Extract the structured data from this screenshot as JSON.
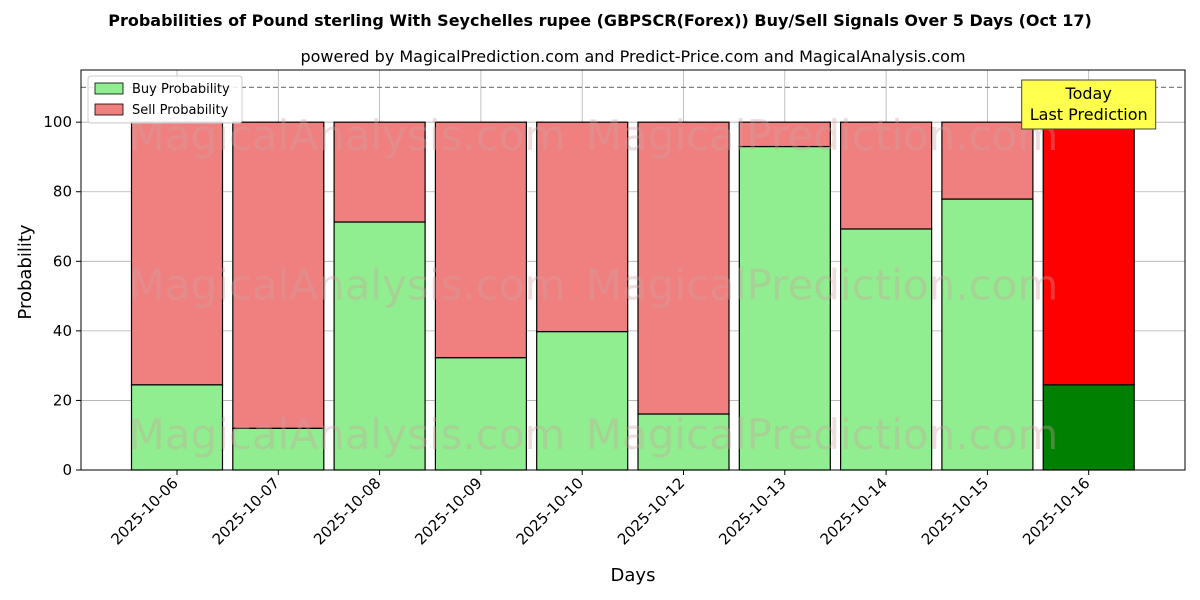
{
  "chart_data": {
    "type": "bar",
    "stacked": true,
    "title": "Probabilities of Pound sterling With Seychelles rupee (GBPSCR(Forex)) Buy/Sell Signals Over 5 Days (Oct 17)",
    "subtitle": "powered by MagicalPrediction.com and Predict-Price.com and MagicalAnalysis.com",
    "xlabel": "Days",
    "ylabel": "Probability",
    "ylim": [
      0,
      115
    ],
    "yticks": [
      0,
      20,
      40,
      60,
      80,
      100
    ],
    "categories": [
      "2025-10-06",
      "2025-10-07",
      "2025-10-08",
      "2025-10-09",
      "2025-10-10",
      "2025-10-12",
      "2025-10-13",
      "2025-10-14",
      "2025-10-15",
      "2025-10-16"
    ],
    "series": [
      {
        "name": "Buy Probability",
        "color": "#90ee90",
        "values": [
          24.5,
          12.0,
          71.3,
          32.3,
          39.8,
          16.1,
          93.0,
          69.3,
          77.9,
          24.5
        ]
      },
      {
        "name": "Sell Probability",
        "color": "#f08080",
        "values": [
          75.5,
          88.0,
          28.7,
          67.7,
          60.2,
          83.9,
          7.0,
          30.7,
          22.1,
          75.5
        ]
      }
    ],
    "highlight": {
      "index": 9,
      "buy_color": "#008000",
      "sell_color": "#ff0000"
    },
    "reference_line": {
      "y": 110,
      "style": "dashed",
      "color": "#808080"
    },
    "annotation": {
      "lines": [
        "Today",
        "Last Prediction"
      ],
      "color": "#ffff4d",
      "category_index": 9
    },
    "legend": {
      "placement": "top-left",
      "entries": [
        "Buy Probability",
        "Sell Probability"
      ]
    },
    "grid": true,
    "watermarks": [
      "MagicalAnalysis.com",
      "MagicalPrediction.com"
    ]
  }
}
